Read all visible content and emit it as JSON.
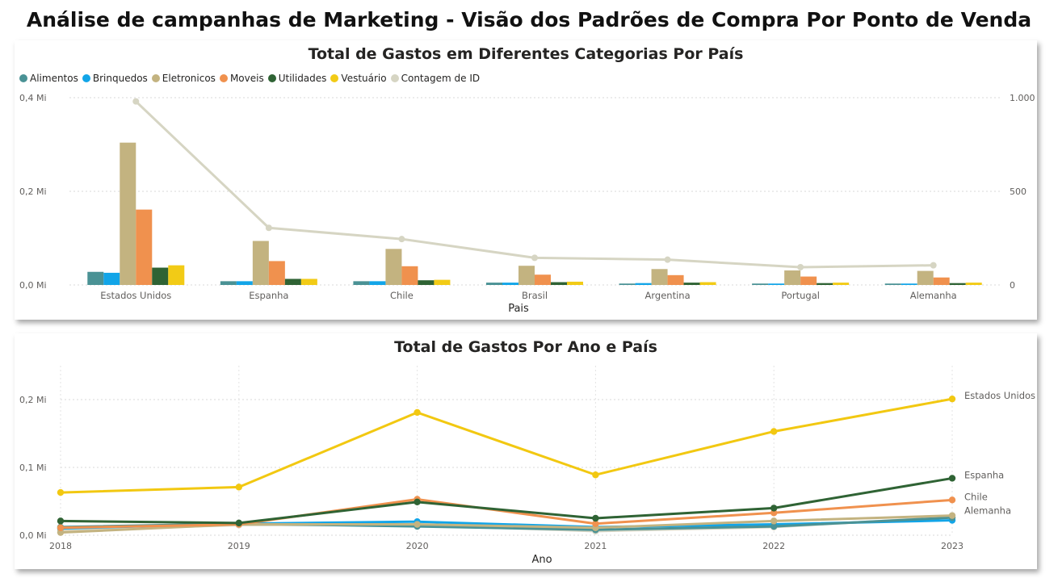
{
  "page_title": "Análise de campanhas de Marketing - Visão dos Padrões de Compra Por Ponto de Venda",
  "chart_data": [
    {
      "type": "bar",
      "title": "Total de Gastos em Diferentes Categorias Por País",
      "xlabel": "Pais",
      "ylabel": "",
      "categories": [
        "Estados Unidos",
        "Espanha",
        "Chile",
        "Brasil",
        "Argentina",
        "Portugal",
        "Alemanha"
      ],
      "ylim": [
        0,
        400000
      ],
      "y_ticks": [
        0,
        200000,
        400000
      ],
      "y_tick_labels": [
        "0,0 Mi",
        "0,2 Mi",
        "0,4 Mi"
      ],
      "y2lim": [
        0,
        1000
      ],
      "y2_ticks": [
        0,
        500,
        1000
      ],
      "y2_tick_labels": [
        "0",
        "500",
        "1.000"
      ],
      "legend_position": "top-left",
      "grid": true,
      "series": [
        {
          "name": "Alimentos",
          "color": "#4A9295",
          "values": [
            28000,
            8000,
            8000,
            5000,
            3000,
            3000,
            3000
          ]
        },
        {
          "name": "Brinquedos",
          "color": "#12A5E8",
          "values": [
            26000,
            8000,
            8000,
            5000,
            4000,
            3000,
            3000
          ]
        },
        {
          "name": "Eletronicos",
          "color": "#C3B380",
          "values": [
            304000,
            94000,
            77000,
            41000,
            34000,
            31000,
            30000
          ]
        },
        {
          "name": "Moveis",
          "color": "#F0914E",
          "values": [
            161000,
            51000,
            40000,
            22000,
            21000,
            18000,
            16000
          ]
        },
        {
          "name": "Utilidades",
          "color": "#2F6334",
          "values": [
            37000,
            13000,
            10000,
            6000,
            5000,
            4000,
            4000
          ]
        },
        {
          "name": "Vestuário",
          "color": "#F2CB16",
          "values": [
            42000,
            13000,
            11000,
            7000,
            6000,
            5000,
            5000
          ]
        },
        {
          "name": "Contagem de ID",
          "color": "#D6D5C3",
          "type": "line",
          "axis": "right",
          "values": [
            980,
            305,
            245,
            145,
            135,
            95,
            105
          ]
        }
      ]
    },
    {
      "type": "line",
      "title": "Total de Gastos Por Ano e País",
      "xlabel": "Ano",
      "ylabel": "",
      "x": [
        2018,
        2019,
        2020,
        2021,
        2022,
        2023
      ],
      "ylim": [
        0,
        250000
      ],
      "y_ticks": [
        0,
        100000,
        200000
      ],
      "y_tick_labels": [
        "0,0 Mi",
        "0,1 Mi",
        "0,2 Mi"
      ],
      "grid": true,
      "series": [
        {
          "name": "Estados Unidos",
          "color": "#F2C811",
          "values": [
            63000,
            71000,
            181000,
            89000,
            153000,
            201000
          ]
        },
        {
          "name": "Espanha",
          "color": "#2F6334",
          "values": [
            21000,
            18000,
            49000,
            25000,
            40000,
            84000
          ]
        },
        {
          "name": "Chile",
          "color": "#F0914E",
          "values": [
            11000,
            16000,
            53000,
            17000,
            33000,
            52000
          ]
        },
        {
          "name": "Alemanha",
          "color": "#C3B380",
          "values": [
            4000,
            16000,
            16000,
            11000,
            21000,
            29000
          ]
        },
        {
          "name": "",
          "color": "#4A9295",
          "values": [
            12000,
            17000,
            13000,
            8000,
            13000,
            26000
          ]
        },
        {
          "name": "",
          "color": "#12A5E8",
          "values": [
            10000,
            17000,
            20000,
            12000,
            16000,
            22000
          ]
        },
        {
          "name": "",
          "color": "#D6D5C3",
          "values": [
            7000,
            15000,
            15000,
            6000,
            12000,
            27000
          ]
        }
      ]
    }
  ]
}
